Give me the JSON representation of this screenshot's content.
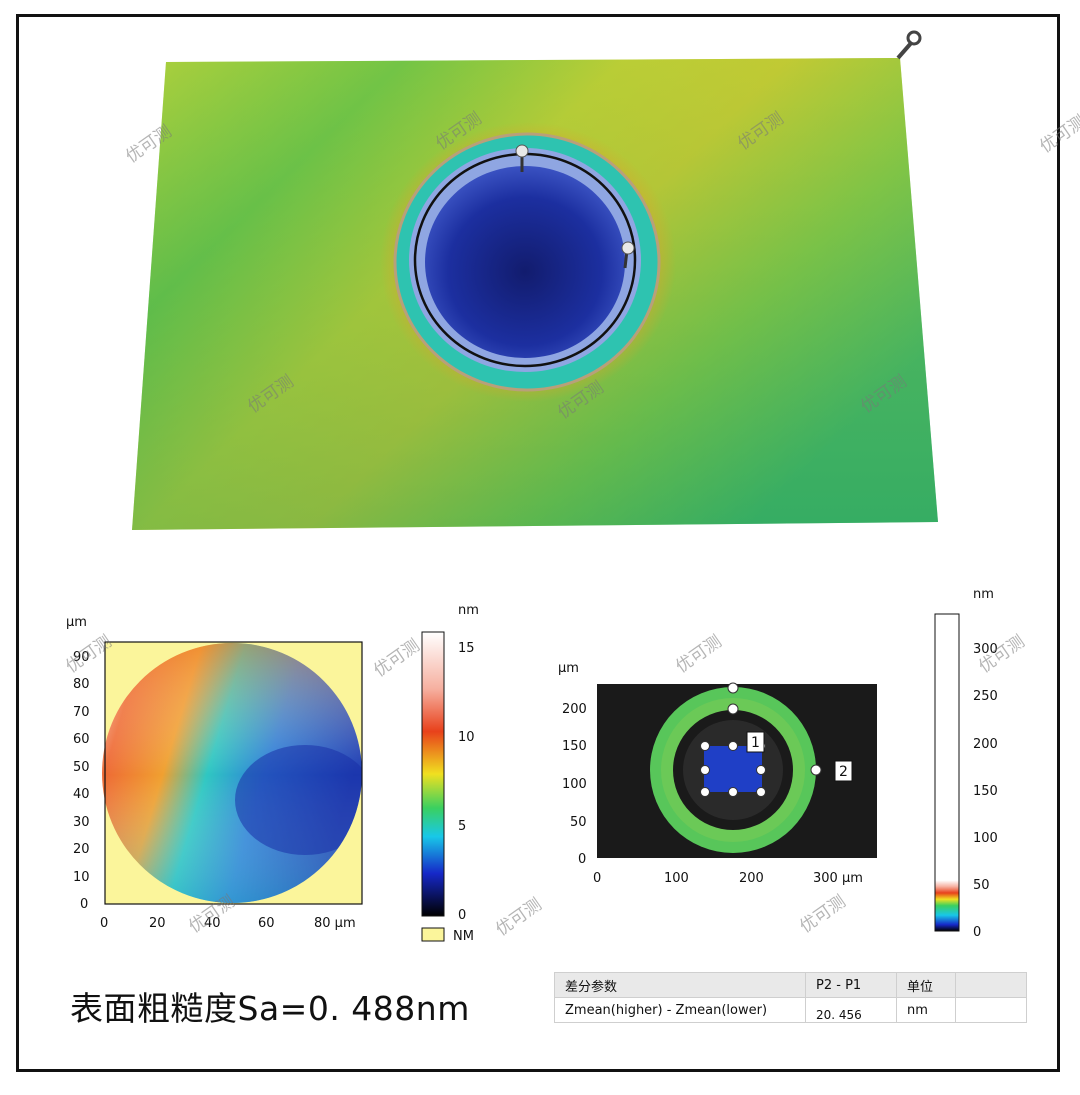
{
  "watermark": "优可测",
  "surface_3d": {
    "colors": {
      "base": "#4fb63c",
      "yellow": "#c6cf35",
      "pit": "#1e2f9a",
      "pit_center": "#101a66"
    }
  },
  "map_left": {
    "y_unit": "µm",
    "y_ticks": [
      "0",
      "10",
      "20",
      "30",
      "40",
      "50",
      "60",
      "70",
      "80",
      "90"
    ],
    "x_ticks": [
      "0",
      "20",
      "40",
      "60",
      "80 µm"
    ],
    "colorbar_unit": "nm",
    "colorbar_ticks": [
      "15",
      "10",
      "5",
      "0"
    ],
    "nm_legend": "NM",
    "nm_color": "#fbf59b"
  },
  "map_right": {
    "y_unit": "µm",
    "y_ticks": [
      "0",
      "50",
      "100",
      "150",
      "200"
    ],
    "x_ticks": [
      "0",
      "100",
      "200",
      "300 µm"
    ],
    "label_1": "1",
    "label_2": "2",
    "colorbar_unit": "nm",
    "colorbar_ticks": [
      "300",
      "250",
      "200",
      "150",
      "100",
      "50",
      "0"
    ]
  },
  "roughness_text": "表面粗糙度Sa=0. 488nm",
  "param_table": {
    "header": [
      "差分参数",
      "P2 - P1",
      "单位"
    ],
    "row": {
      "name": "Zmean(higher) - Zmean(lower)",
      "value": "20. 456",
      "unit": "nm"
    }
  }
}
